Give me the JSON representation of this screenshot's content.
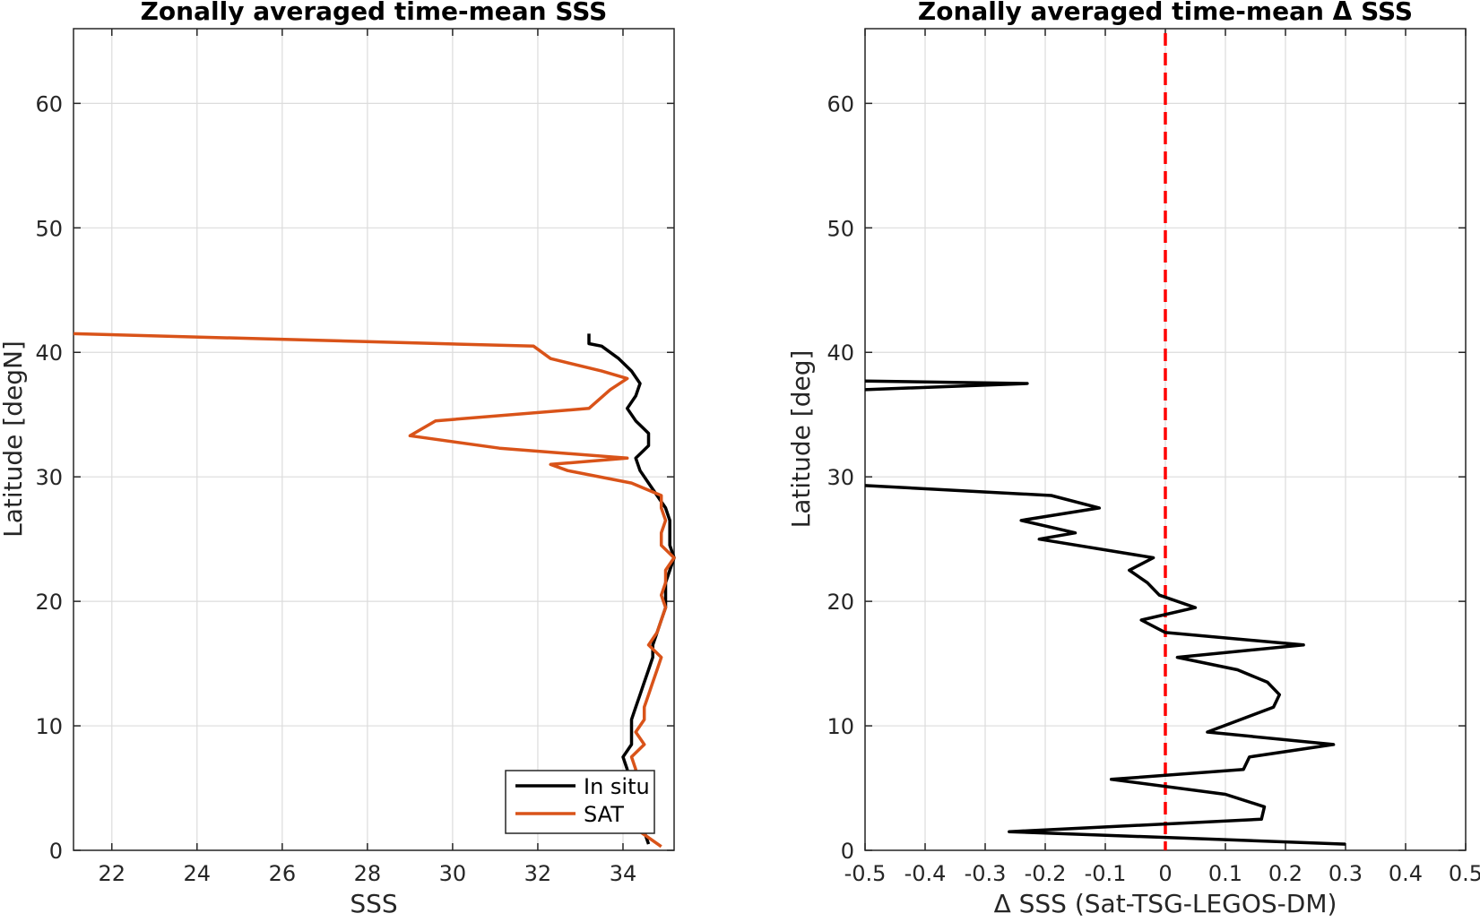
{
  "chart_data": [
    {
      "type": "line",
      "title": "Zonally averaged time-mean SSS",
      "xlabel": "SSS",
      "ylabel": "Latitude [degN]",
      "xlim": [
        21.1,
        35.2
      ],
      "ylim": [
        0,
        66
      ],
      "xticks": [
        "22",
        "24",
        "26",
        "28",
        "30",
        "32",
        "34"
      ],
      "yticks": [
        "0",
        "10",
        "20",
        "30",
        "40",
        "50",
        "60"
      ],
      "grid": true,
      "legend": "bottom-right",
      "series": [
        {
          "name": "In situ",
          "color": "#000000",
          "points": [
            [
              34.6,
              0.5
            ],
            [
              34.5,
              1.5
            ],
            [
              34.3,
              2.5
            ],
            [
              34.2,
              3.5
            ],
            [
              34.1,
              4.5
            ],
            [
              34.1,
              5.5
            ],
            [
              34.1,
              6.5
            ],
            [
              34.0,
              7.5
            ],
            [
              34.2,
              8.5
            ],
            [
              34.2,
              9.5
            ],
            [
              34.2,
              10.5
            ],
            [
              34.3,
              11.5
            ],
            [
              34.4,
              12.5
            ],
            [
              34.5,
              13.5
            ],
            [
              34.6,
              14.5
            ],
            [
              34.7,
              15.5
            ],
            [
              34.7,
              16.5
            ],
            [
              34.8,
              17.5
            ],
            [
              34.9,
              18.5
            ],
            [
              35.0,
              19.5
            ],
            [
              35.0,
              20.5
            ],
            [
              35.0,
              21.5
            ],
            [
              35.1,
              22.5
            ],
            [
              35.2,
              23.5
            ],
            [
              35.1,
              24.5
            ],
            [
              35.1,
              25.5
            ],
            [
              35.1,
              26.5
            ],
            [
              35.0,
              27.5
            ],
            [
              34.8,
              28.5
            ],
            [
              34.6,
              29.5
            ],
            [
              34.4,
              30.5
            ],
            [
              34.3,
              31.5
            ],
            [
              34.6,
              32.5
            ],
            [
              34.6,
              33.5
            ],
            [
              34.3,
              34.5
            ],
            [
              34.1,
              35.5
            ],
            [
              34.3,
              36.5
            ],
            [
              34.4,
              37.5
            ],
            [
              34.2,
              38.5
            ],
            [
              33.9,
              39.5
            ],
            [
              33.5,
              40.5
            ],
            [
              33.2,
              40.7
            ],
            [
              33.2,
              41.5
            ]
          ]
        },
        {
          "name": "SAT",
          "color": "#D95319",
          "points": [
            [
              34.9,
              0.3
            ],
            [
              34.4,
              1.5
            ],
            [
              34.2,
              2.5
            ],
            [
              34.2,
              3.5
            ],
            [
              34.1,
              4.5
            ],
            [
              34.2,
              5.5
            ],
            [
              34.3,
              6.5
            ],
            [
              34.2,
              7.5
            ],
            [
              34.5,
              8.5
            ],
            [
              34.3,
              9.5
            ],
            [
              34.5,
              10.5
            ],
            [
              34.5,
              11.5
            ],
            [
              34.6,
              12.5
            ],
            [
              34.7,
              13.5
            ],
            [
              34.8,
              14.5
            ],
            [
              34.9,
              15.5
            ],
            [
              34.6,
              16.5
            ],
            [
              34.8,
              17.5
            ],
            [
              34.9,
              18.5
            ],
            [
              35.0,
              19.5
            ],
            [
              34.9,
              20.5
            ],
            [
              35.0,
              21.5
            ],
            [
              35.0,
              22.5
            ],
            [
              35.2,
              23.5
            ],
            [
              34.9,
              24.5
            ],
            [
              34.9,
              25.5
            ],
            [
              35.0,
              26.5
            ],
            [
              34.9,
              27.5
            ],
            [
              34.9,
              28.5
            ],
            [
              34.2,
              29.5
            ],
            [
              32.7,
              30.5
            ],
            [
              32.3,
              31.0
            ],
            [
              34.1,
              31.5
            ],
            [
              31.1,
              32.3
            ],
            [
              29.0,
              33.3
            ],
            [
              29.6,
              34.5
            ],
            [
              33.2,
              35.5
            ],
            [
              33.7,
              37.0
            ],
            [
              34.1,
              37.9
            ],
            [
              33.5,
              38.5
            ],
            [
              32.3,
              39.5
            ],
            [
              31.9,
              40.5
            ],
            [
              21.1,
              41.5
            ]
          ]
        }
      ]
    },
    {
      "type": "line",
      "title": "Zonally averaged time-mean Δ SSS",
      "xlabel": "Δ SSS (Sat-TSG-LEGOS-DM)",
      "ylabel": "Latitude [deg]",
      "xlim": [
        -0.5,
        0.5
      ],
      "ylim": [
        0,
        66
      ],
      "xticks": [
        "-0.5",
        "-0.4",
        "-0.3",
        "-0.2",
        "-0.1",
        "0",
        "0.1",
        "0.2",
        "0.3",
        "0.4",
        "0.5"
      ],
      "yticks": [
        "0",
        "10",
        "20",
        "30",
        "40",
        "50",
        "60"
      ],
      "grid": true,
      "reference_line": {
        "x": 0,
        "color": "#FF0000",
        "style": "dashed"
      },
      "series": [
        {
          "color": "#000000",
          "points": [
            [
              0.3,
              0.5
            ],
            [
              -0.26,
              1.5
            ],
            [
              0.16,
              2.5
            ],
            [
              0.165,
              3.5
            ],
            [
              0.1,
              4.5
            ],
            [
              -0.09,
              5.7
            ],
            [
              0.13,
              6.5
            ],
            [
              0.14,
              7.5
            ],
            [
              0.28,
              8.5
            ],
            [
              0.07,
              9.5
            ],
            [
              0.18,
              11.5
            ],
            [
              0.19,
              12.5
            ],
            [
              0.17,
              13.5
            ],
            [
              0.12,
              14.5
            ],
            [
              0.02,
              15.5
            ],
            [
              0.23,
              16.5
            ],
            [
              0.0,
              17.5
            ],
            [
              -0.04,
              18.5
            ],
            [
              0.05,
              19.5
            ],
            [
              -0.01,
              20.5
            ],
            [
              -0.03,
              21.5
            ],
            [
              -0.06,
              22.5
            ],
            [
              -0.02,
              23.5
            ],
            [
              -0.21,
              25.0
            ],
            [
              -0.15,
              25.5
            ],
            [
              -0.24,
              26.5
            ],
            [
              -0.11,
              27.5
            ],
            [
              -0.19,
              28.5
            ],
            [
              -0.5,
              29.3
            ]
          ]
        },
        {
          "color": "#000000",
          "points": [
            [
              -0.5,
              37.0
            ],
            [
              -0.23,
              37.5
            ],
            [
              -0.5,
              37.7
            ]
          ]
        }
      ]
    }
  ],
  "legend": {
    "items": [
      {
        "label": "In situ",
        "color": "#000000"
      },
      {
        "label": "SAT",
        "color": "#D95319"
      }
    ]
  }
}
